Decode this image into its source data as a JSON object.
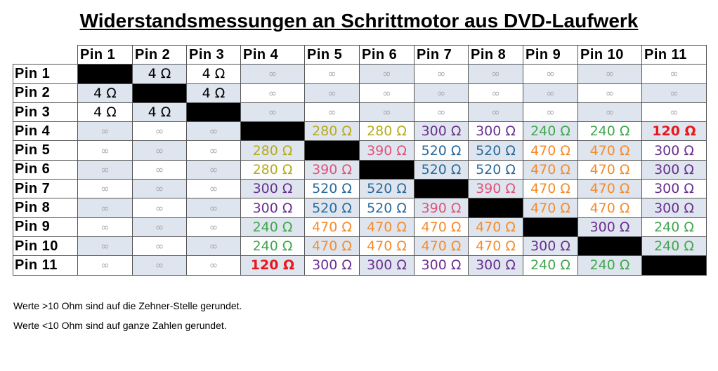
{
  "title": "Widerstandsmessungen an Schrittmotor aus DVD-Laufwerk",
  "colors": {
    "ohm_4": "#000000",
    "ohm_120": "#e8171c",
    "ohm_240": "#3fa74c",
    "ohm_280": "#b6ab1e",
    "ohm_300": "#6a2f90",
    "ohm_390": "#e0537a",
    "ohm_470": "#f58c2c",
    "ohm_520": "#2a6b9d",
    "infinity": "#a9a9a9",
    "diagonal": "#000000",
    "cell_shade": "#dee5ee"
  },
  "table": {
    "columns": [
      "Pin 1",
      "Pin 2",
      "Pin 3",
      "Pin 4",
      "Pin 5",
      "Pin 6",
      "Pin 7",
      "Pin 8",
      "Pin 9",
      "Pin 10",
      "Pin 11"
    ],
    "rows": [
      {
        "label": "Pin 1",
        "cells": [
          "",
          "4 Ω",
          "4 Ω",
          "∞",
          "∞",
          "∞",
          "∞",
          "∞",
          "∞",
          "∞",
          "∞"
        ]
      },
      {
        "label": "Pin 2",
        "cells": [
          "4 Ω",
          "",
          "4 Ω",
          "∞",
          "∞",
          "∞",
          "∞",
          "∞",
          "∞",
          "∞",
          "∞"
        ]
      },
      {
        "label": "Pin 3",
        "cells": [
          "4 Ω",
          "4 Ω",
          "",
          "∞",
          "∞",
          "∞",
          "∞",
          "∞",
          "∞",
          "∞",
          "∞"
        ]
      },
      {
        "label": "Pin 4",
        "cells": [
          "∞",
          "∞",
          "∞",
          "",
          "280 Ω",
          "280 Ω",
          "300 Ω",
          "300 Ω",
          "240 Ω",
          "240 Ω",
          "120 Ω"
        ]
      },
      {
        "label": "Pin 5",
        "cells": [
          "∞",
          "∞",
          "∞",
          "280 Ω",
          "",
          "390 Ω",
          "520 Ω",
          "520 Ω",
          "470 Ω",
          "470 Ω",
          "300 Ω"
        ]
      },
      {
        "label": "Pin 6",
        "cells": [
          "∞",
          "∞",
          "∞",
          "280 Ω",
          "390 Ω",
          "",
          "520 Ω",
          "520 Ω",
          "470 Ω",
          "470 Ω",
          "300 Ω"
        ]
      },
      {
        "label": "Pin 7",
        "cells": [
          "∞",
          "∞",
          "∞",
          "300 Ω",
          "520 Ω",
          "520 Ω",
          "",
          "390 Ω",
          "470 Ω",
          "470 Ω",
          "300 Ω"
        ]
      },
      {
        "label": "Pin 8",
        "cells": [
          "∞",
          "∞",
          "∞",
          "300 Ω",
          "520 Ω",
          "520 Ω",
          "390 Ω",
          "",
          "470 Ω",
          "470 Ω",
          "300 Ω"
        ]
      },
      {
        "label": "Pin 9",
        "cells": [
          "∞",
          "∞",
          "∞",
          "240 Ω",
          "470 Ω",
          "470 Ω",
          "470 Ω",
          "470 Ω",
          "",
          "300 Ω",
          "240 Ω"
        ]
      },
      {
        "label": "Pin 10",
        "cells": [
          "∞",
          "∞",
          "∞",
          "240 Ω",
          "470 Ω",
          "470 Ω",
          "470 Ω",
          "470 Ω",
          "300 Ω",
          "",
          "240 Ω"
        ]
      },
      {
        "label": "Pin 11",
        "cells": [
          "∞",
          "∞",
          "∞",
          "120 Ω",
          "300 Ω",
          "300 Ω",
          "300 Ω",
          "300 Ω",
          "240 Ω",
          "240 Ω",
          ""
        ]
      }
    ]
  },
  "notes": [
    "Werte >10 Ohm sind auf die Zehner-Stelle gerundet.",
    "Werte <10 Ohm sind auf ganze Zahlen gerundet."
  ]
}
